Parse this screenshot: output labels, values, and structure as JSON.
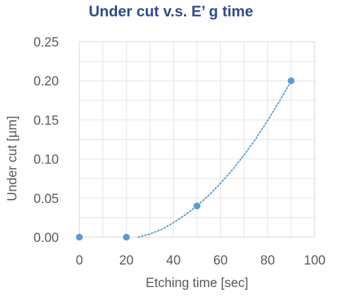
{
  "chart_data": {
    "type": "scatter",
    "title": "Under cut v.s. E’ g time",
    "xlabel": "Etching time [sec]",
    "ylabel": "Under cut [µm]",
    "xlim": [
      0,
      100
    ],
    "ylim": [
      0,
      0.25
    ],
    "x_ticks": [
      "0",
      "20",
      "40",
      "60",
      "80",
      "100"
    ],
    "y_ticks": [
      "0.00",
      "0.05",
      "0.10",
      "0.15",
      "0.20",
      "0.25"
    ],
    "grid": true,
    "legend": "none",
    "series": [
      {
        "x": [
          0,
          20,
          50,
          90
        ],
        "y": [
          0,
          0,
          0.04,
          0.2
        ],
        "color": "#5b9bd5",
        "marker": "circle"
      }
    ],
    "trendline": {
      "style": "dotted",
      "color": "#5b9bd5",
      "x": [
        25,
        30,
        35,
        40,
        45,
        50,
        55,
        60,
        65,
        70,
        75,
        80,
        85,
        90
      ],
      "y": [
        0,
        0.004,
        0.01,
        0.0185,
        0.0285,
        0.04,
        0.0535,
        0.069,
        0.086,
        0.105,
        0.126,
        0.149,
        0.1735,
        0.2
      ]
    }
  }
}
